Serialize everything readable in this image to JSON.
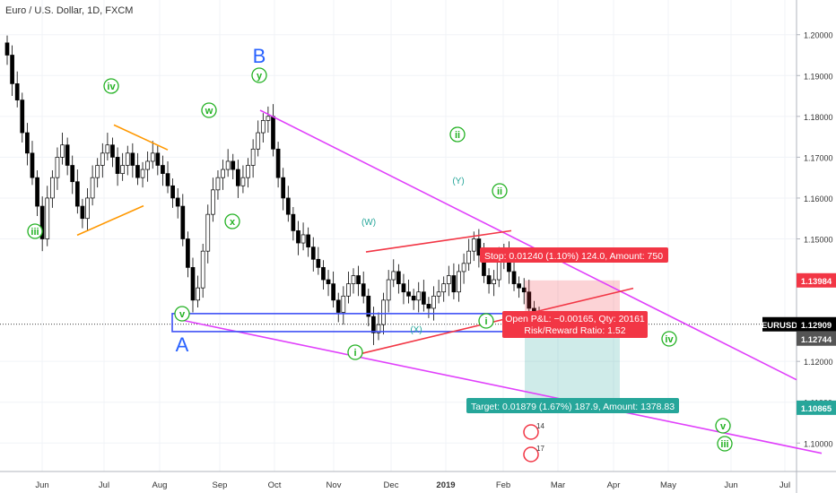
{
  "chart_data": {
    "type": "candlestick",
    "title": "Euro / U.S. Dollar, 1D, FXCM",
    "ylim": [
      1.0915,
      1.2085
    ],
    "y_ticks": [
      "1.20000",
      "1.19000",
      "1.18000",
      "1.17000",
      "1.16000",
      "1.15000",
      "1.12000",
      "1.11000",
      "1.10000"
    ],
    "x_labels": [
      "Jun",
      "Jul",
      "Aug",
      "Sep",
      "Oct",
      "Nov",
      "Dec",
      "2019",
      "Feb",
      "Mar",
      "Apr",
      "May",
      "Jun",
      "Jul"
    ],
    "price_tags": [
      {
        "label": "1.13984",
        "value": 1.13984,
        "color": "#f23645"
      },
      {
        "label": "EURUSD",
        "value": 1.12909,
        "color": "#000000"
      },
      {
        "label": "1.12909",
        "value": 1.12909,
        "color": "#000000"
      },
      {
        "label": "1.12744",
        "value": 1.12744,
        "color": "#555555"
      },
      {
        "label": "1.10865",
        "value": 1.10865,
        "color": "#26a69a"
      }
    ],
    "candles_close": [
      1.195,
      1.188,
      1.184,
      1.176,
      1.171,
      1.165,
      1.158,
      1.15,
      1.16,
      1.165,
      1.17,
      1.173,
      1.168,
      1.164,
      1.158,
      1.155,
      1.16,
      1.165,
      1.168,
      1.171,
      1.173,
      1.17,
      1.166,
      1.168,
      1.171,
      1.168,
      1.165,
      1.167,
      1.169,
      1.171,
      1.168,
      1.166,
      1.163,
      1.16,
      1.158,
      1.15,
      1.143,
      1.135,
      1.138,
      1.147,
      1.156,
      1.162,
      1.165,
      1.167,
      1.169,
      1.167,
      1.163,
      1.165,
      1.168,
      1.172,
      1.176,
      1.179,
      1.18,
      1.172,
      1.165,
      1.16,
      1.156,
      1.152,
      1.149,
      1.151,
      1.148,
      1.145,
      1.143,
      1.14,
      1.139,
      1.135,
      1.132,
      1.136,
      1.139,
      1.141,
      1.139,
      1.136,
      1.131,
      1.127,
      1.129,
      1.135,
      1.14,
      1.142,
      1.139,
      1.137,
      1.136,
      1.135,
      1.137,
      1.134,
      1.133,
      1.136,
      1.137,
      1.139,
      1.141,
      1.137,
      1.142,
      1.144,
      1.147,
      1.15,
      1.146,
      1.141,
      1.139,
      1.14,
      1.145,
      1.147,
      1.142,
      1.139,
      1.138,
      1.137,
      1.133,
      1.131,
      1.1295
    ],
    "labels": [
      {
        "text": "B",
        "color": "#2962ff"
      },
      {
        "text": "A",
        "color": "#2962ff"
      },
      {
        "text": "y",
        "color": "#22b122"
      },
      {
        "text": "w",
        "color": "#22b122"
      },
      {
        "text": "x",
        "color": "#22b122"
      },
      {
        "text": "iv",
        "color": "#22b122"
      },
      {
        "text": "iii",
        "color": "#22b122"
      },
      {
        "text": "v",
        "color": "#22b122"
      },
      {
        "text": "ii",
        "color": "#22b122"
      },
      {
        "text": "(Y)",
        "color": "#26a69a"
      },
      {
        "text": "(W)",
        "color": "#26a69a"
      },
      {
        "text": "(X)",
        "color": "#26a69a"
      },
      {
        "text": "ii",
        "color": "#22b122"
      },
      {
        "text": "i",
        "color": "#22b122"
      },
      {
        "text": "i",
        "color": "#22b122"
      },
      {
        "text": "iv",
        "color": "#22b122"
      },
      {
        "text": "v",
        "color": "#22b122"
      },
      {
        "text": "iii",
        "color": "#22b122"
      }
    ],
    "trade_labels": {
      "stop": "Stop: 0.01240 (1.10%) 124.0, Amount: 750",
      "open": "Open P&L: −0.00165, Qty: 20161",
      "rr": "Risk/Reward Ratio: 1.52",
      "target": "Target: 0.01879 (1.67%) 187.9, Amount: 1378.83"
    },
    "events": [
      "14",
      "17"
    ],
    "colors": {
      "up": "#26a69a",
      "down": "#000000",
      "wedge": "#e040fb",
      "channel": "#f23645",
      "box": "#3f51f5",
      "orange": "#ff9800",
      "wave": "#22b122",
      "label_blue": "#2962ff"
    }
  }
}
